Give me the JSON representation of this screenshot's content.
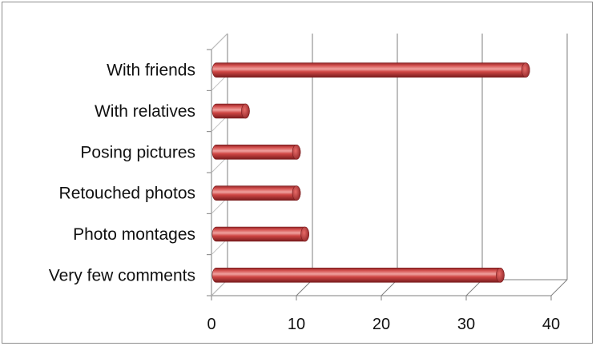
{
  "chart_data": {
    "type": "bar",
    "orientation": "horizontal",
    "title": "",
    "xlabel": "",
    "ylabel": "",
    "categories": [
      "With friends",
      "With relatives",
      "Posing pictures",
      "Retouched photos",
      "Photo montages",
      "Very few comments"
    ],
    "values": [
      37,
      4,
      10,
      10,
      11,
      34
    ],
    "xlim": [
      0,
      40
    ],
    "xticks": [
      0,
      10,
      20,
      30,
      40
    ],
    "grid": true,
    "legend": "none",
    "style": "3d-cylinder",
    "colors": {
      "bar": "#c8383a",
      "bar_highlight": "#f2a5a2",
      "bar_shadow": "#7a1c1e",
      "grid": "#7f7f7f"
    }
  }
}
